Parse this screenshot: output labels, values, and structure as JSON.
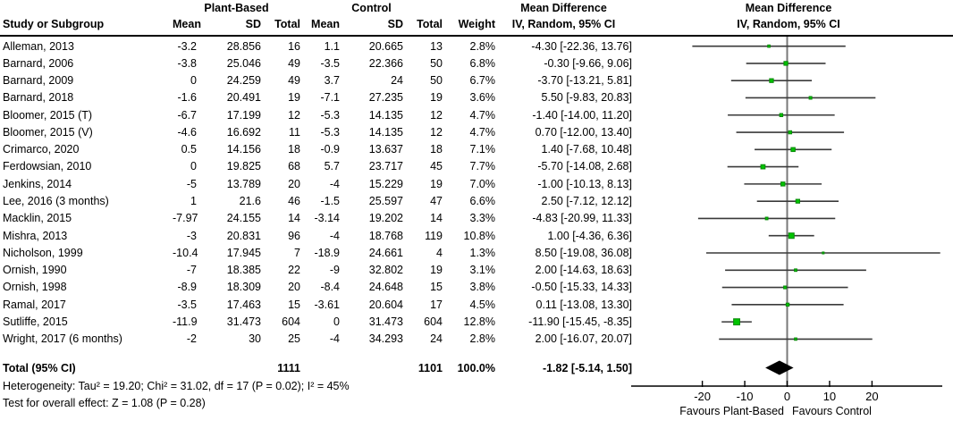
{
  "header": {
    "study_col": "Study or Subgroup",
    "group1": "Plant-Based",
    "group2": "Control",
    "sub": {
      "mean": "Mean",
      "sd": "SD",
      "total": "Total",
      "weight": "Weight",
      "ci": "IV, Random, 95% CI"
    },
    "effect_title": "Mean Difference",
    "plot_title_line1": "Mean Difference",
    "plot_title_line2": "IV, Random, 95% CI"
  },
  "chart_data": {
    "type": "forest",
    "effect_measure": "Mean Difference",
    "model": "IV, Random, 95% CI",
    "xticks": [
      -20,
      -10,
      0,
      10,
      20
    ],
    "xtick_labels": [
      "-20",
      "-10",
      "0",
      "10",
      "20"
    ],
    "xlim": [
      -37,
      36.6
    ],
    "favours_left": "Favours Plant-Based",
    "favours_right": "Favours Control",
    "marker_color": "#00C300",
    "marker_border": "#0A8A0A",
    "studies": [
      {
        "name": "Alleman, 2013",
        "mean1": "-3.2",
        "sd1": "28.856",
        "n1": "16",
        "mean2": "1.1",
        "sd2": "20.665",
        "n2": "13",
        "weight": "2.8%",
        "ci_text": "-4.30 [-22.36, 13.76]",
        "md": -4.3,
        "lo": -22.36,
        "hi": 13.76,
        "w": 2.8
      },
      {
        "name": "Barnard, 2006",
        "mean1": "-3.8",
        "sd1": "25.046",
        "n1": "49",
        "mean2": "-3.5",
        "sd2": "22.366",
        "n2": "50",
        "weight": "6.8%",
        "ci_text": "-0.30 [-9.66, 9.06]",
        "md": -0.3,
        "lo": -9.66,
        "hi": 9.06,
        "w": 6.8
      },
      {
        "name": "Barnard, 2009",
        "mean1": "0",
        "sd1": "24.259",
        "n1": "49",
        "mean2": "3.7",
        "sd2": "24",
        "n2": "50",
        "weight": "6.7%",
        "ci_text": "-3.70 [-13.21, 5.81]",
        "md": -3.7,
        "lo": -13.21,
        "hi": 5.81,
        "w": 6.7
      },
      {
        "name": "Barnard, 2018",
        "mean1": "-1.6",
        "sd1": "20.491",
        "n1": "19",
        "mean2": "-7.1",
        "sd2": "27.235",
        "n2": "19",
        "weight": "3.6%",
        "ci_text": "5.50 [-9.83, 20.83]",
        "md": 5.5,
        "lo": -9.83,
        "hi": 20.83,
        "w": 3.6
      },
      {
        "name": "Bloomer, 2015 (T)",
        "mean1": "-6.7",
        "sd1": "17.199",
        "n1": "12",
        "mean2": "-5.3",
        "sd2": "14.135",
        "n2": "12",
        "weight": "4.7%",
        "ci_text": "-1.40 [-14.00, 11.20]",
        "md": -1.4,
        "lo": -14.0,
        "hi": 11.2,
        "w": 4.7
      },
      {
        "name": "Bloomer, 2015 (V)",
        "mean1": "-4.6",
        "sd1": "16.692",
        "n1": "11",
        "mean2": "-5.3",
        "sd2": "14.135",
        "n2": "12",
        "weight": "4.7%",
        "ci_text": "0.70 [-12.00, 13.40]",
        "md": 0.7,
        "lo": -12.0,
        "hi": 13.4,
        "w": 4.7
      },
      {
        "name": "Crimarco, 2020",
        "mean1": "0.5",
        "sd1": "14.156",
        "n1": "18",
        "mean2": "-0.9",
        "sd2": "13.637",
        "n2": "18",
        "weight": "7.1%",
        "ci_text": "1.40 [-7.68, 10.48]",
        "md": 1.4,
        "lo": -7.68,
        "hi": 10.48,
        "w": 7.1
      },
      {
        "name": "Ferdowsian, 2010",
        "mean1": "0",
        "sd1": "19.825",
        "n1": "68",
        "mean2": "5.7",
        "sd2": "23.717",
        "n2": "45",
        "weight": "7.7%",
        "ci_text": "-5.70 [-14.08, 2.68]",
        "md": -5.7,
        "lo": -14.08,
        "hi": 2.68,
        "w": 7.7
      },
      {
        "name": "Jenkins, 2014",
        "mean1": "-5",
        "sd1": "13.789",
        "n1": "20",
        "mean2": "-4",
        "sd2": "15.229",
        "n2": "19",
        "weight": "7.0%",
        "ci_text": "-1.00 [-10.13, 8.13]",
        "md": -1.0,
        "lo": -10.13,
        "hi": 8.13,
        "w": 7.0
      },
      {
        "name": "Lee, 2016 (3 months)",
        "mean1": "1",
        "sd1": "21.6",
        "n1": "46",
        "mean2": "-1.5",
        "sd2": "25.597",
        "n2": "47",
        "weight": "6.6%",
        "ci_text": "2.50 [-7.12, 12.12]",
        "md": 2.5,
        "lo": -7.12,
        "hi": 12.12,
        "w": 6.6
      },
      {
        "name": "Macklin, 2015",
        "mean1": "-7.97",
        "sd1": "24.155",
        "n1": "14",
        "mean2": "-3.14",
        "sd2": "19.202",
        "n2": "14",
        "weight": "3.3%",
        "ci_text": "-4.83 [-20.99, 11.33]",
        "md": -4.83,
        "lo": -20.99,
        "hi": 11.33,
        "w": 3.3
      },
      {
        "name": "Mishra, 2013",
        "mean1": "-3",
        "sd1": "20.831",
        "n1": "96",
        "mean2": "-4",
        "sd2": "18.768",
        "n2": "119",
        "weight": "10.8%",
        "ci_text": "1.00 [-4.36, 6.36]",
        "md": 1.0,
        "lo": -4.36,
        "hi": 6.36,
        "w": 10.8
      },
      {
        "name": "Nicholson, 1999",
        "mean1": "-10.4",
        "sd1": "17.945",
        "n1": "7",
        "mean2": "-18.9",
        "sd2": "24.661",
        "n2": "4",
        "weight": "1.3%",
        "ci_text": "8.50 [-19.08, 36.08]",
        "md": 8.5,
        "lo": -19.08,
        "hi": 36.08,
        "w": 1.3
      },
      {
        "name": "Ornish, 1990",
        "mean1": "-7",
        "sd1": "18.385",
        "n1": "22",
        "mean2": "-9",
        "sd2": "32.802",
        "n2": "19",
        "weight": "3.1%",
        "ci_text": "2.00 [-14.63, 18.63]",
        "md": 2.0,
        "lo": -14.63,
        "hi": 18.63,
        "w": 3.1
      },
      {
        "name": "Ornish, 1998",
        "mean1": "-8.9",
        "sd1": "18.309",
        "n1": "20",
        "mean2": "-8.4",
        "sd2": "24.648",
        "n2": "15",
        "weight": "3.8%",
        "ci_text": "-0.50 [-15.33, 14.33]",
        "md": -0.5,
        "lo": -15.33,
        "hi": 14.33,
        "w": 3.8
      },
      {
        "name": "Ramal, 2017",
        "mean1": "-3.5",
        "sd1": "17.463",
        "n1": "15",
        "mean2": "-3.61",
        "sd2": "20.604",
        "n2": "17",
        "weight": "4.5%",
        "ci_text": "0.11 [-13.08, 13.30]",
        "md": 0.11,
        "lo": -13.08,
        "hi": 13.3,
        "w": 4.5
      },
      {
        "name": "Sutliffe, 2015",
        "mean1": "-11.9",
        "sd1": "31.473",
        "n1": "604",
        "mean2": "0",
        "sd2": "31.473",
        "n2": "604",
        "weight": "12.8%",
        "ci_text": "-11.90 [-15.45, -8.35]",
        "md": -11.9,
        "lo": -15.45,
        "hi": -8.35,
        "w": 12.8
      },
      {
        "name": "Wright, 2017 (6 months)",
        "mean1": "-2",
        "sd1": "30",
        "n1": "25",
        "mean2": "-4",
        "sd2": "34.293",
        "n2": "24",
        "weight": "2.8%",
        "ci_text": "2.00 [-16.07, 20.07]",
        "md": 2.0,
        "lo": -16.07,
        "hi": 20.07,
        "w": 2.8
      }
    ],
    "total": {
      "label": "Total (95% CI)",
      "n1": "1111",
      "n2": "1101",
      "weight": "100.0%",
      "ci_text": "-1.82 [-5.14, 1.50]",
      "md": -1.82,
      "lo": -5.14,
      "hi": 1.5
    }
  },
  "footer": {
    "heterogeneity": "Heterogeneity: Tau² = 19.20; Chi² = 31.02, df = 17 (P = 0.02); I² = 45%",
    "overall_effect": "Test for overall effect: Z = 1.08 (P = 0.28)"
  }
}
